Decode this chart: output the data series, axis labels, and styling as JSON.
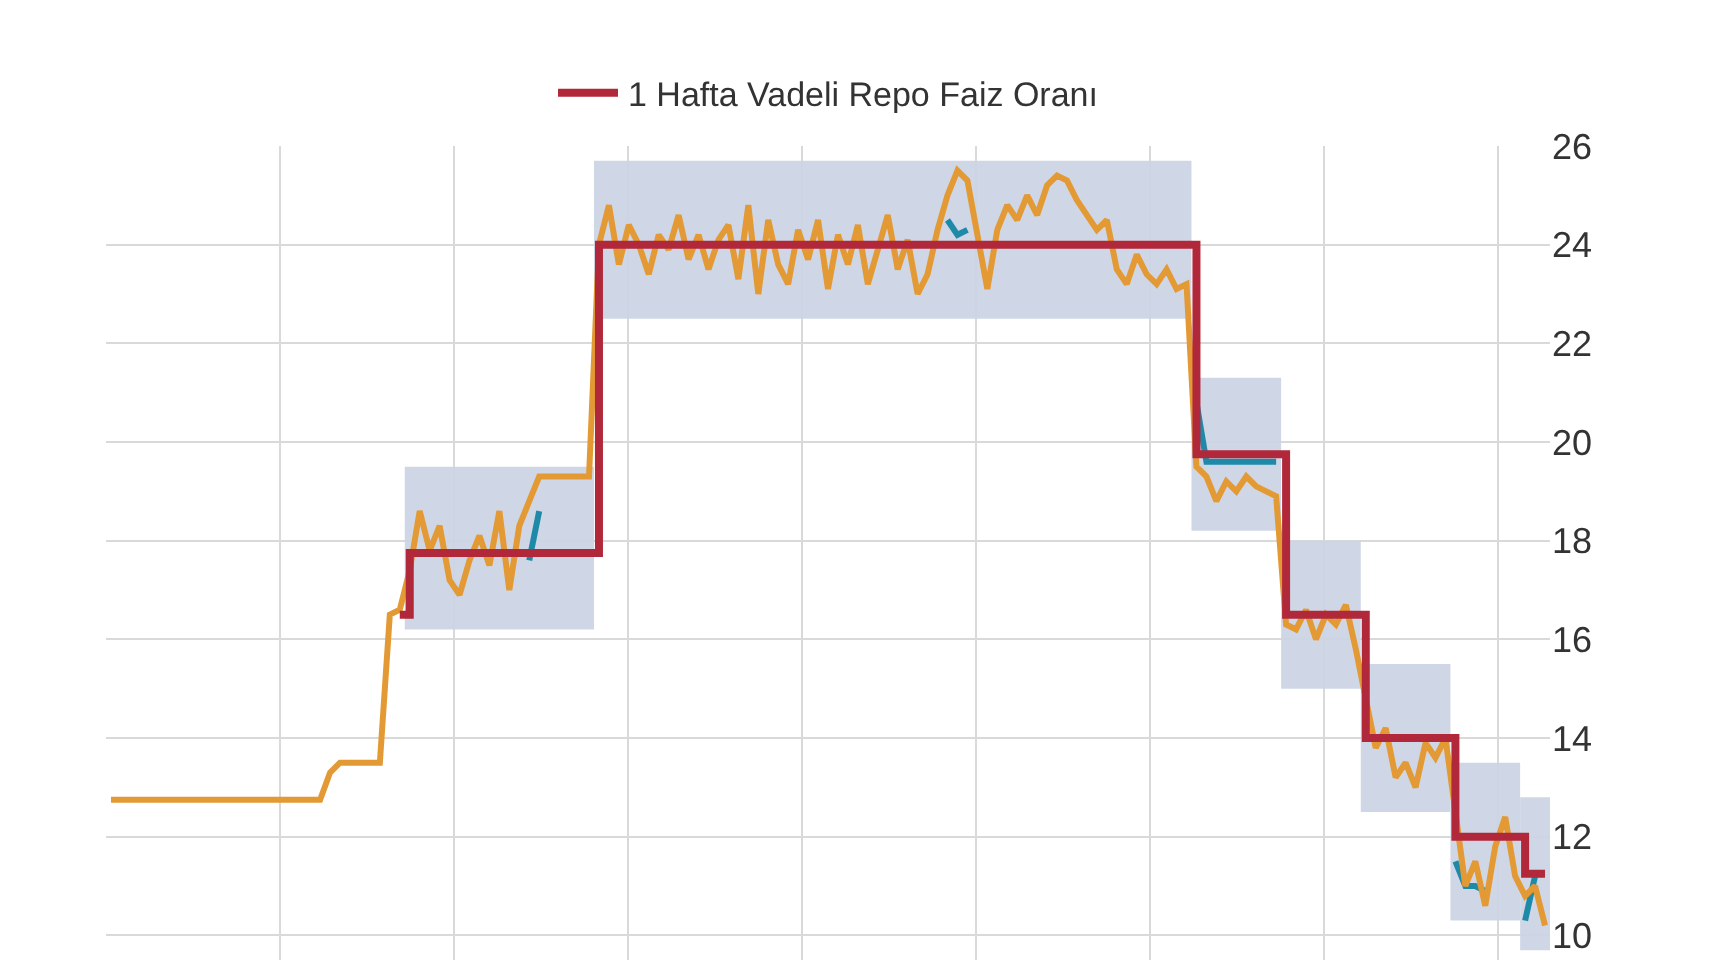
{
  "chart_data": {
    "type": "line",
    "categories": [
      null,
      null,
      null,
      null,
      null,
      null,
      null,
      null,
      null,
      null,
      null,
      null,
      null,
      null,
      null,
      null,
      null,
      null,
      null,
      null,
      null,
      null,
      null,
      null,
      null,
      null,
      null,
      null,
      null,
      null,
      null,
      null,
      null,
      null,
      null,
      null,
      null,
      null,
      null,
      null,
      null,
      null,
      null,
      null,
      null,
      null,
      null,
      null,
      null,
      null,
      null,
      null,
      null,
      null,
      null,
      null,
      null,
      null,
      null,
      null,
      null,
      null,
      null,
      null,
      null,
      null,
      null,
      null,
      null,
      null,
      null,
      null,
      null,
      null,
      null,
      null,
      null,
      null,
      null,
      null,
      null,
      null,
      null,
      null,
      null,
      null,
      null,
      null,
      null,
      null,
      null,
      null,
      null,
      null,
      null,
      null,
      null,
      null,
      null,
      null,
      null,
      null,
      null,
      null,
      null,
      null,
      null,
      null,
      null,
      null,
      null,
      null,
      null,
      null,
      null,
      null,
      null,
      null,
      null,
      null,
      null,
      null,
      null,
      null,
      null,
      null,
      null,
      null,
      null,
      null,
      null,
      null,
      null,
      null,
      null,
      null,
      null,
      null,
      null,
      null,
      null,
      null,
      null,
      null,
      null
    ],
    "series": [
      {
        "color": "#1f8aa8",
        "values": [
          null,
          null,
          null,
          null,
          null,
          null,
          null,
          null,
          null,
          null,
          null,
          null,
          null,
          null,
          null,
          null,
          null,
          null,
          null,
          null,
          null,
          null,
          null,
          null,
          null,
          null,
          null,
          null,
          null,
          null,
          null,
          null,
          null,
          null,
          null,
          null,
          null,
          null,
          null,
          null,
          null,
          null,
          17.6,
          18.6,
          null,
          null,
          null,
          null,
          null,
          null,
          null,
          null,
          null,
          null,
          null,
          null,
          null,
          null,
          null,
          null,
          null,
          null,
          null,
          null,
          null,
          null,
          null,
          null,
          null,
          null,
          null,
          null,
          null,
          null,
          null,
          null,
          null,
          null,
          null,
          null,
          null,
          null,
          null,
          null,
          24.5,
          24.2,
          24.3,
          null,
          null,
          null,
          null,
          null,
          null,
          null,
          null,
          null,
          null,
          null,
          null,
          null,
          null,
          null,
          null,
          null,
          null,
          null,
          null,
          null,
          null,
          20.8,
          19.6,
          19.6,
          19.6,
          19.6,
          19.6,
          19.6,
          19.6,
          19.6,
          null,
          null,
          null,
          null,
          null,
          null,
          null,
          null,
          null,
          null,
          null,
          null,
          null,
          null,
          null,
          null,
          null,
          11.5,
          11.0,
          11.0,
          10.9,
          null,
          null,
          null,
          10.3,
          11.2,
          null
        ]
      },
      {
        "color": "#e39a35",
        "values": [
          12.75,
          12.75,
          12.75,
          12.75,
          12.75,
          12.75,
          12.75,
          12.75,
          12.75,
          12.75,
          12.75,
          12.75,
          12.75,
          12.75,
          12.75,
          12.75,
          12.75,
          12.75,
          12.75,
          12.75,
          12.75,
          12.75,
          13.3,
          13.5,
          13.5,
          13.5,
          13.5,
          13.5,
          16.5,
          16.6,
          17.4,
          18.6,
          17.8,
          18.3,
          17.2,
          16.9,
          17.6,
          18.1,
          17.5,
          18.6,
          17.0,
          18.3,
          18.8,
          19.3,
          19.3,
          19.3,
          19.3,
          19.3,
          19.3,
          24.0,
          24.8,
          23.6,
          24.4,
          24.0,
          23.4,
          24.2,
          23.9,
          24.6,
          23.7,
          24.2,
          23.5,
          24.1,
          24.4,
          23.3,
          24.8,
          23.0,
          24.5,
          23.6,
          23.2,
          24.3,
          23.7,
          24.5,
          23.1,
          24.2,
          23.6,
          24.4,
          23.2,
          23.9,
          24.6,
          23.5,
          24.1,
          23.0,
          23.4,
          24.3,
          25.0,
          25.5,
          25.3,
          24.2,
          23.1,
          24.3,
          24.8,
          24.5,
          25.0,
          24.6,
          25.2,
          25.4,
          25.3,
          24.9,
          24.6,
          24.3,
          24.5,
          23.5,
          23.2,
          23.8,
          23.4,
          23.2,
          23.5,
          23.1,
          23.2,
          19.5,
          19.3,
          18.8,
          19.2,
          19.0,
          19.3,
          19.1,
          19.0,
          18.9,
          16.3,
          16.2,
          16.6,
          16.0,
          16.5,
          16.3,
          16.7,
          15.8,
          14.8,
          13.8,
          14.2,
          13.2,
          13.5,
          13.0,
          13.9,
          13.6,
          14.0,
          12.5,
          11.0,
          11.5,
          10.6,
          11.8,
          12.4,
          11.2,
          10.8,
          11.0,
          10.2
        ]
      },
      {
        "name": "1 Hafta Vadeli Repo Faiz Oranı",
        "type": "step",
        "color": "#b0283a",
        "values": [
          null,
          null,
          null,
          null,
          null,
          null,
          null,
          null,
          null,
          null,
          null,
          null,
          null,
          null,
          null,
          null,
          null,
          null,
          null,
          null,
          null,
          null,
          null,
          null,
          null,
          null,
          null,
          null,
          null,
          16.5,
          17.75,
          17.75,
          17.75,
          17.75,
          17.75,
          17.75,
          17.75,
          17.75,
          17.75,
          17.75,
          17.75,
          17.75,
          17.75,
          17.75,
          17.75,
          17.75,
          17.75,
          17.75,
          17.75,
          24,
          24,
          24,
          24,
          24,
          24,
          24,
          24,
          24,
          24,
          24,
          24,
          24,
          24,
          24,
          24,
          24,
          24,
          24,
          24,
          24,
          24,
          24,
          24,
          24,
          24,
          24,
          24,
          24,
          24,
          24,
          24,
          24,
          24,
          24,
          24,
          24,
          24,
          24,
          24,
          24,
          24,
          24,
          24,
          24,
          24,
          24,
          24,
          24,
          24,
          24,
          24,
          24,
          24,
          24,
          24,
          24,
          24,
          24,
          24,
          19.75,
          19.75,
          19.75,
          19.75,
          19.75,
          19.75,
          19.75,
          19.75,
          19.75,
          16.5,
          16.5,
          16.5,
          16.5,
          16.5,
          16.5,
          16.5,
          16.5,
          14,
          14,
          14,
          14,
          14,
          14,
          14,
          14,
          14,
          12,
          12,
          12,
          12,
          12,
          12,
          12,
          11.25,
          11.25,
          11.25
        ],
        "lower": [
          null,
          null,
          null,
          null,
          null,
          null,
          null,
          null,
          null,
          null,
          null,
          null,
          null,
          null,
          null,
          null,
          null,
          null,
          null,
          null,
          null,
          null,
          null,
          null,
          null,
          null,
          null,
          null,
          null,
          null,
          16.2,
          16.2,
          16.2,
          16.2,
          16.2,
          16.2,
          16.2,
          16.2,
          16.2,
          16.2,
          16.2,
          16.2,
          16.2,
          16.2,
          16.2,
          16.2,
          16.2,
          16.2,
          16.2,
          22.5,
          22.5,
          22.5,
          22.5,
          22.5,
          22.5,
          22.5,
          22.5,
          22.5,
          22.5,
          22.5,
          22.5,
          22.5,
          22.5,
          22.5,
          22.5,
          22.5,
          22.5,
          22.5,
          22.5,
          22.5,
          22.5,
          22.5,
          22.5,
          22.5,
          22.5,
          22.5,
          22.5,
          22.5,
          22.5,
          22.5,
          22.5,
          22.5,
          22.5,
          22.5,
          22.5,
          22.5,
          22.5,
          22.5,
          22.5,
          22.5,
          22.5,
          22.5,
          22.5,
          22.5,
          22.5,
          22.5,
          22.5,
          22.5,
          22.5,
          22.5,
          22.5,
          22.5,
          22.5,
          22.5,
          22.5,
          22.5,
          22.5,
          22.5,
          22.5,
          18.2,
          18.2,
          18.2,
          18.2,
          18.2,
          18.2,
          18.2,
          18.2,
          18.2,
          15,
          15,
          15,
          15,
          15,
          15,
          15,
          15,
          12.5,
          12.5,
          12.5,
          12.5,
          12.5,
          12.5,
          12.5,
          12.5,
          12.5,
          10.3,
          10.3,
          10.3,
          10.3,
          10.3,
          10.3,
          10.3,
          9.7,
          9.7,
          9.7
        ],
        "upper": [
          null,
          null,
          null,
          null,
          null,
          null,
          null,
          null,
          null,
          null,
          null,
          null,
          null,
          null,
          null,
          null,
          null,
          null,
          null,
          null,
          null,
          null,
          null,
          null,
          null,
          null,
          null,
          null,
          null,
          null,
          19.5,
          19.5,
          19.5,
          19.5,
          19.5,
          19.5,
          19.5,
          19.5,
          19.5,
          19.5,
          19.5,
          19.5,
          19.5,
          19.5,
          19.5,
          19.5,
          19.5,
          19.5,
          19.5,
          25.7,
          25.7,
          25.7,
          25.7,
          25.7,
          25.7,
          25.7,
          25.7,
          25.7,
          25.7,
          25.7,
          25.7,
          25.7,
          25.7,
          25.7,
          25.7,
          25.7,
          25.7,
          25.7,
          25.7,
          25.7,
          25.7,
          25.7,
          25.7,
          25.7,
          25.7,
          25.7,
          25.7,
          25.7,
          25.7,
          25.7,
          25.7,
          25.7,
          25.7,
          25.7,
          25.7,
          25.7,
          25.7,
          25.7,
          25.7,
          25.7,
          25.7,
          25.7,
          25.7,
          25.7,
          25.7,
          25.7,
          25.7,
          25.7,
          25.7,
          25.7,
          25.7,
          25.7,
          25.7,
          25.7,
          25.7,
          25.7,
          25.7,
          25.7,
          25.7,
          21.3,
          21.3,
          21.3,
          21.3,
          21.3,
          21.3,
          21.3,
          21.3,
          21.3,
          18,
          18,
          18,
          18,
          18,
          18,
          18,
          18,
          15.5,
          15.5,
          15.5,
          15.5,
          15.5,
          15.5,
          15.5,
          15.5,
          15.5,
          13.5,
          13.5,
          13.5,
          13.5,
          13.5,
          13.5,
          13.5,
          12.8,
          12.8,
          12.8
        ]
      }
    ],
    "ylim": [
      9.5,
      26
    ],
    "yticks": [
      10,
      12,
      14,
      16,
      18,
      20,
      22,
      24,
      26
    ],
    "grid": true,
    "legend": "top",
    "tick_labels": "y"
  }
}
